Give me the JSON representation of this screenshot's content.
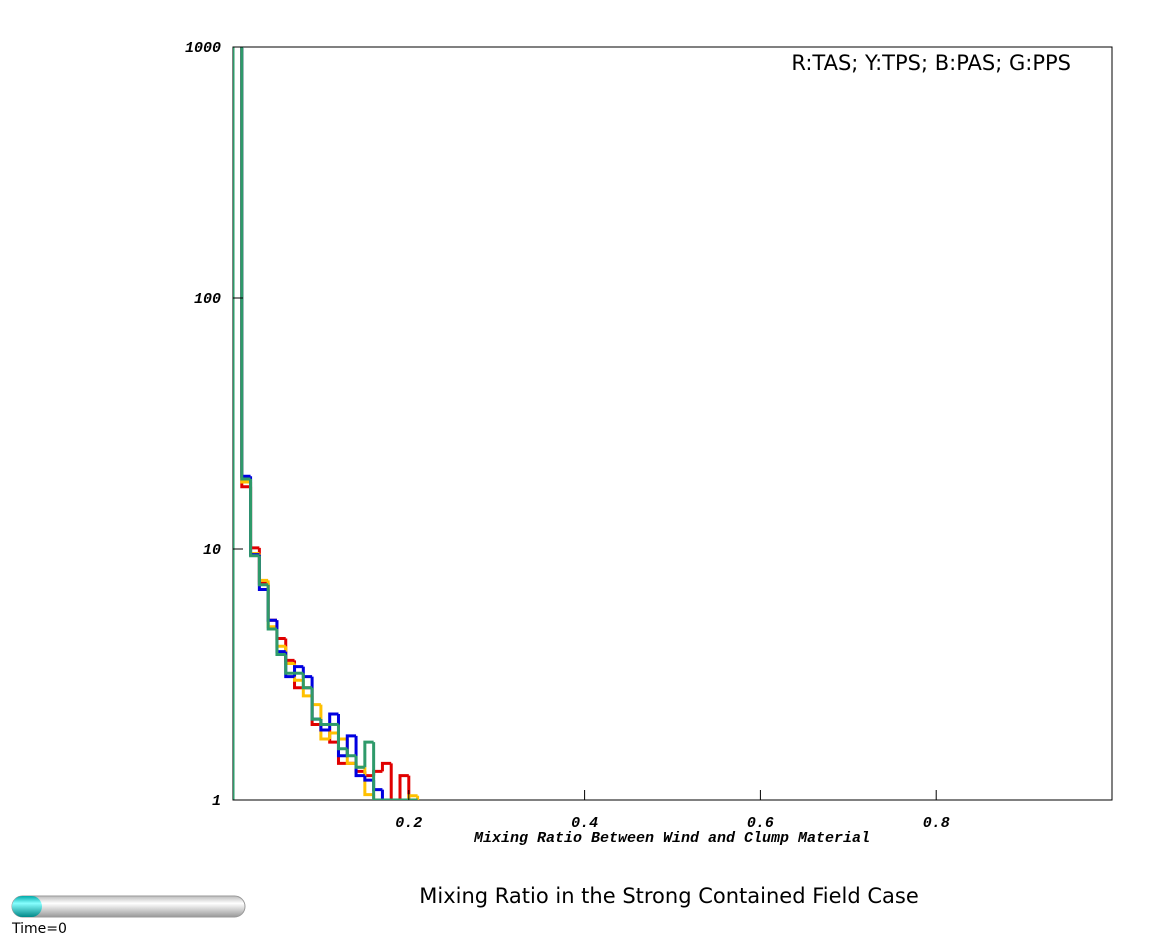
{
  "chart_data": {
    "type": "step-histogram",
    "title": "Mixing Ratio in the Strong Contained Field Case",
    "xlabel": "Mixing Ratio Between Wind and Clump Material",
    "annotation": "R:TAS; Y:TPS; B:PAS; G:PPS",
    "time_label": "Time=0",
    "bins": [
      0,
      0.01,
      0.02,
      0.03,
      0.04,
      0.05,
      0.06,
      0.07,
      0.08,
      0.09,
      0.1,
      0.11,
      0.12,
      0.13,
      0.14,
      0.15,
      0.16,
      0.17,
      0.18,
      0.19,
      0.2,
      0.21
    ],
    "series": [
      {
        "name": "TAS",
        "color": "#e00000",
        "values": [
          2000,
          17.7,
          10.1,
          7.3,
          5.2,
          4.4,
          3.6,
          2.8,
          2.8,
          2.0,
          1.9,
          1.7,
          1.4,
          1.4,
          1.3,
          1.25,
          1.3,
          1.4,
          1.0,
          1.25,
          1.0
        ]
      },
      {
        "name": "TPS",
        "color": "#ffc000",
        "values": [
          2000,
          18.5,
          9.6,
          7.5,
          4.9,
          4.1,
          3.5,
          3.0,
          2.6,
          2.4,
          1.75,
          1.85,
          1.75,
          1.4,
          1.35,
          1.05,
          1.0,
          1.0,
          1.0,
          1.0,
          1.04
        ]
      },
      {
        "name": "PAS",
        "color": "#0000e0",
        "values": [
          2000,
          19.5,
          9.5,
          6.9,
          5.2,
          3.9,
          3.1,
          3.4,
          3.1,
          2.1,
          1.9,
          2.2,
          1.5,
          1.8,
          1.25,
          1.2,
          1.1,
          1.0,
          1.0,
          1.0,
          1.0
        ]
      },
      {
        "name": "PPS",
        "color": "#2e9a6a",
        "values": [
          2000,
          19.0,
          9.4,
          7.2,
          4.8,
          3.8,
          3.2,
          3.2,
          2.8,
          2.1,
          2.0,
          2.0,
          1.6,
          1.5,
          1.35,
          1.7,
          1.0,
          1.0,
          1.0,
          1.0,
          1.0
        ]
      }
    ],
    "xlim": [
      0,
      1
    ],
    "xticks": [
      0.2,
      0.4,
      0.6,
      0.8
    ],
    "ylim": [
      1,
      1000
    ],
    "yticks": [
      1,
      10,
      100,
      1000
    ],
    "log_y": true
  }
}
